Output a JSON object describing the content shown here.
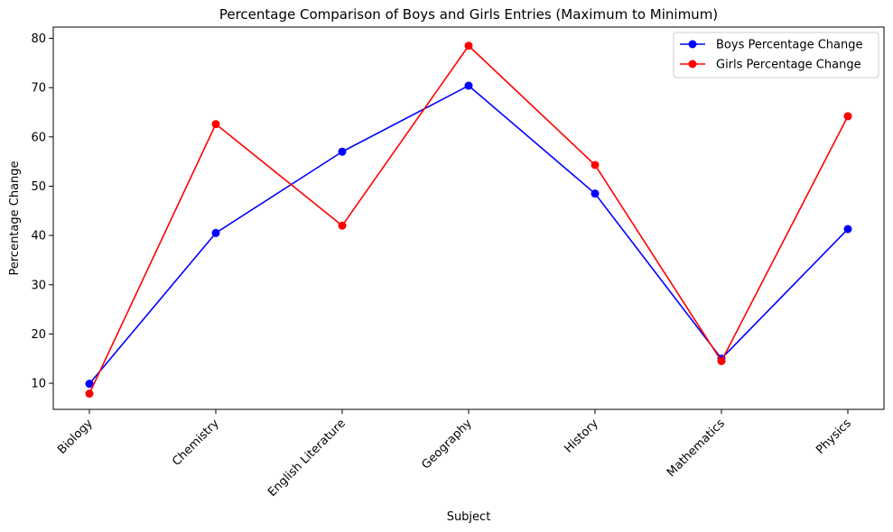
{
  "chart_data": {
    "type": "line",
    "title": "Percentage Comparison of Boys and Girls Entries (Maximum to Minimum)",
    "xlabel": "Subject",
    "ylabel": "Percentage Change",
    "categories": [
      "Biology",
      "Chemistry",
      "English Literature",
      "Geography",
      "History",
      "Mathematics",
      "Physics"
    ],
    "ylim": [
      4.7,
      82.3
    ],
    "yticks": [
      10,
      20,
      30,
      40,
      50,
      60,
      70,
      80
    ],
    "grid": false,
    "legend_position": "top-right",
    "series": [
      {
        "name": "Boys Percentage Change",
        "color": "#0000ff",
        "marker": "circle",
        "values": [
          9.9,
          40.5,
          57.0,
          70.4,
          48.5,
          15.0,
          41.3
        ]
      },
      {
        "name": "Girls Percentage Change",
        "color": "#ff0000",
        "marker": "circle",
        "values": [
          7.9,
          62.6,
          42.0,
          78.5,
          54.3,
          14.5,
          64.2
        ]
      }
    ]
  }
}
